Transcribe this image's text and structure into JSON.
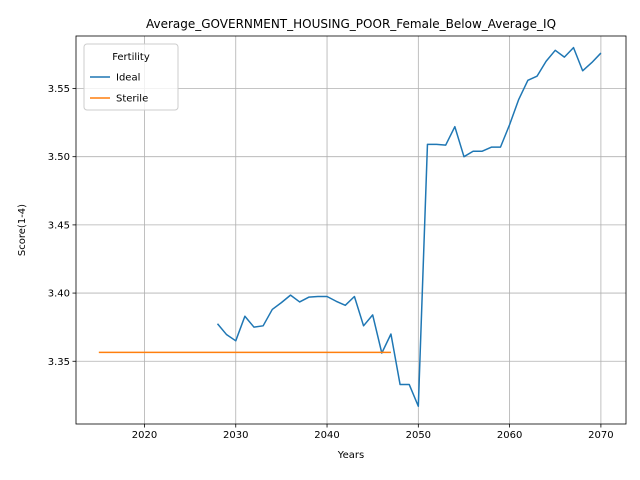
{
  "chart_data": {
    "type": "line",
    "title": "Average_GOVERNMENT_HOUSING_POOR_Female_Below_Average_IQ",
    "xlabel": "Years",
    "ylabel": "Score(1-4)",
    "xlim": [
      2012.5,
      2072.75
    ],
    "ylim": [
      3.304,
      3.5885
    ],
    "xticks": [
      2020,
      2030,
      2040,
      2050,
      2060,
      2070
    ],
    "yticks": [
      3.35,
      3.4,
      3.45,
      3.5,
      3.55
    ],
    "ytick_labels": [
      "3.35",
      "3.40",
      "3.45",
      "3.50",
      "3.55"
    ],
    "grid": true,
    "legend": {
      "title": "Fertility",
      "placement": "top-left"
    },
    "series": [
      {
        "name": "Ideal",
        "color": "#1f77b4",
        "x": [
          2028,
          2029,
          2030,
          2031,
          2032,
          2033,
          2034,
          2035,
          2036,
          2037,
          2038,
          2039,
          2040,
          2041,
          2042,
          2043,
          2044,
          2045,
          2046,
          2047,
          2048,
          2049,
          2050,
          2051,
          2052,
          2053,
          2054,
          2055,
          2056,
          2057,
          2058,
          2059,
          2060,
          2061,
          2062,
          2063,
          2064,
          2065,
          2066,
          2067,
          2068,
          2069,
          2070
        ],
        "y": [
          3.3775,
          3.3695,
          3.365,
          3.383,
          3.375,
          3.376,
          3.388,
          3.393,
          3.3985,
          3.3935,
          3.397,
          3.3975,
          3.3975,
          3.394,
          3.391,
          3.3975,
          3.376,
          3.384,
          3.356,
          3.37,
          3.333,
          3.333,
          3.317,
          3.509,
          3.509,
          3.5085,
          3.522,
          3.5,
          3.504,
          3.504,
          3.507,
          3.507,
          3.5235,
          3.542,
          3.556,
          3.559,
          3.57,
          3.578,
          3.573,
          3.58,
          3.563,
          3.569,
          3.576
        ]
      },
      {
        "name": "Sterile",
        "color": "#ff7f0e",
        "x": [
          2015,
          2016,
          2017,
          2018,
          2019,
          2020,
          2021,
          2022,
          2023,
          2024,
          2025,
          2026,
          2027,
          2028,
          2029,
          2030,
          2031,
          2032,
          2033,
          2034,
          2035,
          2036,
          2037,
          2038,
          2039,
          2040,
          2041,
          2042,
          2043,
          2044,
          2045,
          2046,
          2047
        ],
        "y": [
          3.3565,
          3.3565,
          3.3565,
          3.3565,
          3.3565,
          3.3565,
          3.3565,
          3.3565,
          3.3565,
          3.3565,
          3.3565,
          3.3565,
          3.3565,
          3.3565,
          3.3565,
          3.3565,
          3.3565,
          3.3565,
          3.3565,
          3.3565,
          3.3565,
          3.3565,
          3.3565,
          3.3565,
          3.3565,
          3.3565,
          3.3565,
          3.3565,
          3.3565,
          3.3565,
          3.3565,
          3.3565,
          3.3565
        ]
      }
    ]
  }
}
